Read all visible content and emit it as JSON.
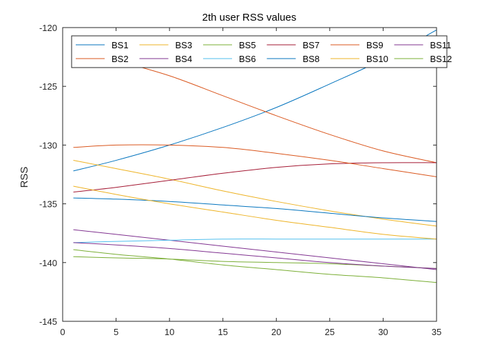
{
  "chart_data": {
    "type": "line",
    "title": "2th user RSS values",
    "xlabel": "",
    "ylabel": "RSS",
    "xlim": [
      0,
      35
    ],
    "ylim": [
      -145,
      -120
    ],
    "xticks": [
      0,
      5,
      10,
      15,
      20,
      25,
      30,
      35
    ],
    "yticks": [
      -120,
      -125,
      -130,
      -135,
      -140,
      -145
    ],
    "grid": false,
    "legend_position": "top",
    "x": [
      1,
      5,
      10,
      15,
      20,
      25,
      30,
      35
    ],
    "series": [
      {
        "name": "BS1",
        "color": "#0072BD",
        "values": [
          -132.2,
          -131.3,
          -130.0,
          -128.5,
          -126.8,
          -124.8,
          -122.7,
          -120.2
        ]
      },
      {
        "name": "BS2",
        "color": "#D95319",
        "values": [
          -121.9,
          -122.8,
          -124.1,
          -125.8,
          -127.5,
          -129.1,
          -130.5,
          -131.5
        ]
      },
      {
        "name": "BS3",
        "color": "#EDB120",
        "values": [
          -131.3,
          -132.0,
          -132.9,
          -133.9,
          -134.8,
          -135.6,
          -136.3,
          -136.9
        ]
      },
      {
        "name": "BS4",
        "color": "#7E2F8E",
        "values": [
          -137.2,
          -137.6,
          -138.1,
          -138.6,
          -139.1,
          -139.6,
          -140.1,
          -140.6
        ]
      },
      {
        "name": "BS5",
        "color": "#77AC30",
        "values": [
          -139.5,
          -139.6,
          -139.7,
          -139.9,
          -140.0,
          -140.1,
          -140.3,
          -140.5
        ]
      },
      {
        "name": "BS6",
        "color": "#4DBEEE",
        "values": [
          -138.3,
          -138.2,
          -138.1,
          -138.0,
          -138.0,
          -138.0,
          -138.0,
          -138.0
        ]
      },
      {
        "name": "BS7",
        "color": "#A2142F",
        "values": [
          -134.0,
          -133.6,
          -133.0,
          -132.4,
          -131.9,
          -131.6,
          -131.5,
          -131.5
        ]
      },
      {
        "name": "BS8",
        "color": "#0072BD",
        "values": [
          -134.5,
          -134.6,
          -134.8,
          -135.1,
          -135.4,
          -135.8,
          -136.2,
          -136.5
        ]
      },
      {
        "name": "BS9",
        "color": "#D95319",
        "values": [
          -130.2,
          -130.0,
          -130.0,
          -130.2,
          -130.7,
          -131.3,
          -132.0,
          -132.7
        ]
      },
      {
        "name": "BS10",
        "color": "#EDB120",
        "values": [
          -133.5,
          -134.2,
          -135.0,
          -135.7,
          -136.4,
          -137.0,
          -137.6,
          -138.0
        ]
      },
      {
        "name": "BS11",
        "color": "#7E2F8E",
        "values": [
          -138.3,
          -138.5,
          -138.8,
          -139.2,
          -139.6,
          -140.0,
          -140.3,
          -140.5
        ]
      },
      {
        "name": "BS12",
        "color": "#77AC30",
        "values": [
          -138.9,
          -139.3,
          -139.7,
          -140.2,
          -140.6,
          -141.0,
          -141.3,
          -141.7
        ]
      }
    ]
  }
}
